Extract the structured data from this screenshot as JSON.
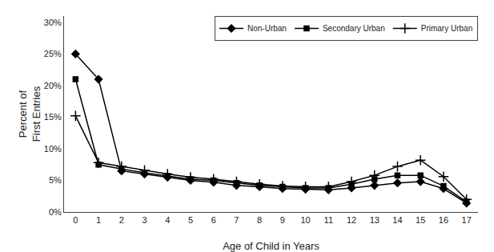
{
  "chart_data": {
    "type": "line",
    "x": [
      0,
      1,
      2,
      3,
      4,
      5,
      6,
      7,
      8,
      9,
      10,
      11,
      12,
      13,
      14,
      15,
      16,
      17
    ],
    "series": [
      {
        "name": "Non-Urban",
        "color": "#000000",
        "marker": "diamond",
        "line_style": "solid",
        "values": [
          0.25,
          0.21,
          0.065,
          0.06,
          0.055,
          0.05,
          0.047,
          0.042,
          0.04,
          0.037,
          0.036,
          0.035,
          0.038,
          0.042,
          0.046,
          0.048,
          0.037,
          0.014
        ]
      },
      {
        "name": "Secondary Urban",
        "color": "#000000",
        "marker": "square",
        "line_style": "solid",
        "values": [
          0.21,
          0.075,
          0.068,
          0.062,
          0.057,
          0.052,
          0.05,
          0.046,
          0.042,
          0.04,
          0.038,
          0.038,
          0.044,
          0.052,
          0.058,
          0.058,
          0.041,
          0.016
        ]
      },
      {
        "name": "Primary Urban",
        "color": "#000000",
        "marker": "plus",
        "line_style": "solid",
        "values": [
          0.152,
          0.078,
          0.072,
          0.066,
          0.06,
          0.055,
          0.052,
          0.048,
          0.044,
          0.041,
          0.04,
          0.04,
          0.048,
          0.058,
          0.072,
          0.082,
          0.056,
          0.02
        ]
      }
    ],
    "x_label": "Age of Child in Years",
    "y_label": "Percent of\nFirst Entries",
    "xlim": [
      -0.5,
      17.5
    ],
    "xticks": [
      0,
      1,
      2,
      3,
      4,
      5,
      6,
      7,
      8,
      9,
      10,
      11,
      12,
      13,
      14,
      15,
      16,
      17
    ],
    "ylim": [
      0,
      0.31
    ],
    "yticks": [
      {
        "value": 0,
        "label": "0%"
      },
      {
        "value": 0.05,
        "label": "5%"
      },
      {
        "value": 0.1,
        "label": "10%"
      },
      {
        "value": 0.15,
        "label": "15%"
      },
      {
        "value": 0.2,
        "label": "20%"
      },
      {
        "value": 0.25,
        "label": "25%"
      },
      {
        "value": 0.3,
        "label": "30%"
      }
    ],
    "grid": false,
    "legend": "upper right"
  }
}
